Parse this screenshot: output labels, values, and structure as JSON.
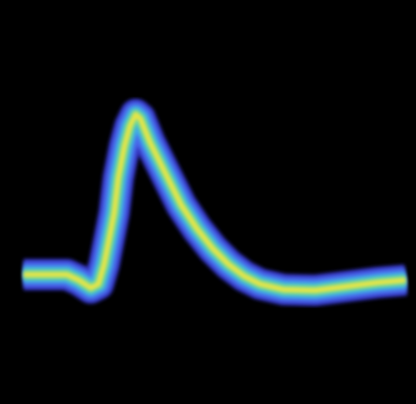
{
  "chart_data": {
    "type": "density-line",
    "x": [
      0.4,
      6.6,
      11.7,
      14.8,
      17.9,
      19.9,
      21.4,
      22.6,
      24.0,
      25.1,
      26.7,
      28.1,
      29.6,
      30.8,
      33.3,
      37.4,
      41.5,
      45.6,
      49.7,
      53.8,
      57.9,
      62.0,
      68.2,
      76.4,
      84.6,
      92.8,
      100
    ],
    "values": [
      23,
      23,
      23,
      21.25,
      18.75,
      20,
      26.25,
      33.75,
      42.5,
      53.75,
      63.75,
      70,
      73.75,
      72.5,
      65,
      55,
      45,
      37.5,
      31.25,
      26.25,
      22.5,
      20,
      18.25,
      18,
      19.25,
      20.5,
      21.25
    ],
    "xlim": [
      0,
      100
    ],
    "ylim": [
      0,
      100
    ],
    "colors": [
      "#3a3ad8",
      "#4a6cf0",
      "#3fb0e8",
      "#5fd8a0",
      "#f6e83a"
    ]
  }
}
